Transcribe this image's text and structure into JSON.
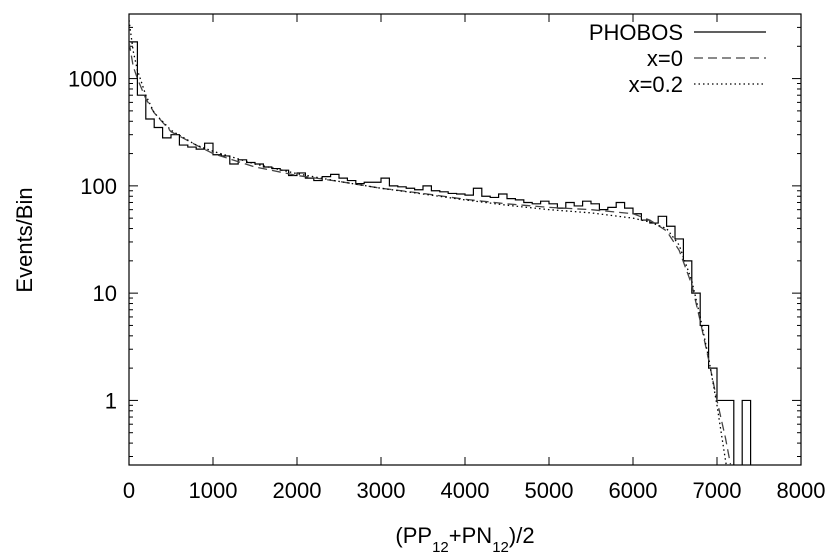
{
  "chart_data": {
    "type": "line",
    "title": "",
    "xlabel": "(PP12+PN12)/2",
    "xlabel_parts": [
      {
        "text": "(PP",
        "sub": false
      },
      {
        "text": "12",
        "sub": true
      },
      {
        "text": "+PN",
        "sub": false
      },
      {
        "text": "12",
        "sub": true
      },
      {
        "text": ")/2",
        "sub": false
      }
    ],
    "ylabel": "Events/Bin",
    "xlim": [
      0,
      8000
    ],
    "ylim": [
      0.25,
      4000
    ],
    "yscale": "log",
    "grid": false,
    "legend_position": "top-right",
    "x_ticks": [
      {
        "value": 0,
        "label": "0"
      },
      {
        "value": 1000,
        "label": "1000"
      },
      {
        "value": 2000,
        "label": "2000"
      },
      {
        "value": 3000,
        "label": "3000"
      },
      {
        "value": 4000,
        "label": "4000"
      },
      {
        "value": 5000,
        "label": "5000"
      },
      {
        "value": 6000,
        "label": "6000"
      },
      {
        "value": 7000,
        "label": "7000"
      },
      {
        "value": 8000,
        "label": "8000"
      }
    ],
    "y_ticks": [
      {
        "value": 1,
        "label": "1"
      },
      {
        "value": 10,
        "label": "10"
      },
      {
        "value": 100,
        "label": "100"
      },
      {
        "value": 1000,
        "label": "1000"
      }
    ],
    "series": [
      {
        "name": "PHOBOS",
        "style": "histogram",
        "bin_width": 100,
        "x": [
          0,
          100,
          200,
          300,
          400,
          500,
          600,
          700,
          800,
          900,
          1000,
          1100,
          1200,
          1300,
          1400,
          1500,
          1600,
          1700,
          1800,
          1900,
          2000,
          2100,
          2200,
          2300,
          2400,
          2500,
          2600,
          2700,
          2800,
          2900,
          3000,
          3100,
          3200,
          3300,
          3400,
          3500,
          3600,
          3700,
          3800,
          3900,
          4000,
          4100,
          4200,
          4300,
          4400,
          4500,
          4600,
          4700,
          4800,
          4900,
          5000,
          5100,
          5200,
          5300,
          5400,
          5500,
          5600,
          5700,
          5800,
          5900,
          6000,
          6100,
          6200,
          6300,
          6400,
          6500,
          6600,
          6700,
          6800,
          6900,
          7000,
          7100,
          7200,
          7300,
          7400
        ],
        "values": [
          2200,
          700,
          420,
          350,
          280,
          300,
          240,
          230,
          220,
          250,
          195,
          190,
          160,
          175,
          165,
          160,
          150,
          145,
          140,
          125,
          132,
          118,
          112,
          122,
          128,
          118,
          112,
          105,
          108,
          108,
          118,
          100,
          98,
          95,
          92,
          100,
          90,
          88,
          85,
          84,
          82,
          95,
          80,
          78,
          84,
          76,
          74,
          70,
          68,
          72,
          68,
          62,
          70,
          65,
          72,
          68,
          60,
          63,
          70,
          62,
          55,
          48,
          45,
          52,
          42,
          32,
          20,
          10,
          5,
          2,
          1,
          1,
          0,
          1,
          0
        ]
      },
      {
        "name": "x=0",
        "style": "dashed",
        "x": [
          0,
          50,
          100,
          200,
          300,
          500,
          800,
          1000,
          1500,
          2000,
          2500,
          3000,
          3500,
          4000,
          4500,
          5000,
          5500,
          6000,
          6200,
          6400,
          6550,
          6700,
          6800,
          6900,
          7000,
          7100,
          7150,
          7200
        ],
        "values": [
          2200,
          1300,
          1000,
          650,
          480,
          320,
          240,
          200,
          150,
          125,
          110,
          95,
          85,
          75,
          68,
          63,
          60,
          55,
          48,
          38,
          25,
          12,
          5.5,
          2.4,
          1.0,
          0.45,
          0.28,
          0.18
        ]
      },
      {
        "name": "x=0.2",
        "style": "dotted",
        "x": [
          0,
          50,
          100,
          200,
          300,
          500,
          800,
          1000,
          1500,
          2000,
          2500,
          3000,
          3500,
          4000,
          4500,
          5000,
          5500,
          6000,
          6200,
          6400,
          6550,
          6700,
          6800,
          6900,
          7000,
          7050,
          7100,
          7150
        ],
        "values": [
          3500,
          1800,
          1200,
          700,
          480,
          330,
          240,
          210,
          160,
          130,
          110,
          95,
          84,
          74,
          66,
          60,
          56,
          50,
          46,
          40,
          28,
          13,
          6,
          2.5,
          0.9,
          0.5,
          0.28,
          0.16
        ]
      }
    ]
  }
}
